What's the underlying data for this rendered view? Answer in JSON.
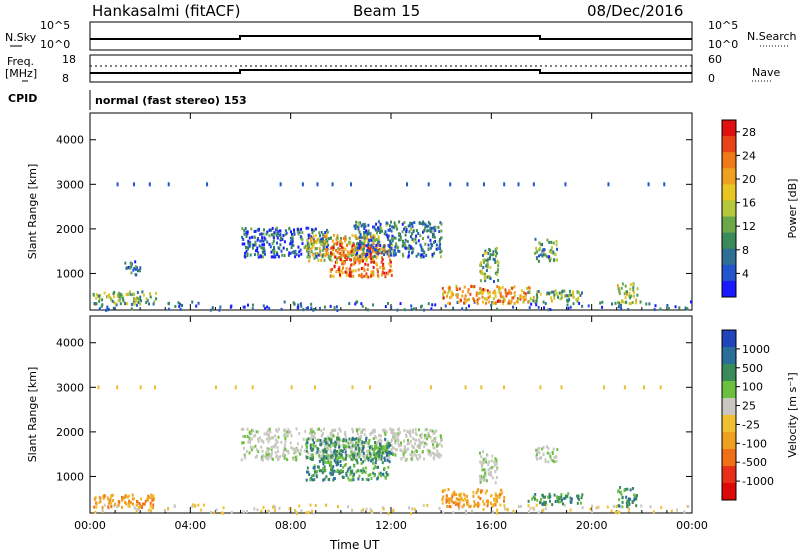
{
  "header": {
    "station": "Hankasalmi (fitACF)",
    "beam": "Beam 15",
    "date": "08/Dec/2016"
  },
  "status_panels": {
    "nsky_label": "N.Sky",
    "nsky_top": "10^5",
    "nsky_bottom": "10^0",
    "nsearch_label": "N.Search",
    "nsearch_top": "10^5",
    "nsearch_bottom": "10^0",
    "freq_label": "Freq.",
    "freq_unit": "[MHz]",
    "freq_top": "18",
    "freq_bottom": "8",
    "nave_label": "Nave",
    "nave_top": "60",
    "nave_bottom": "0",
    "cpid_label": "CPID",
    "cpid_value": "normal (fast stereo) 153"
  },
  "chart_data": [
    {
      "type": "heatmap",
      "panel": "power",
      "xlabel": "",
      "ylabel": "Slant Range [km]",
      "x_ticks": [
        "00:00",
        "04:00",
        "08:00",
        "12:00",
        "16:00",
        "20:00",
        "00:00"
      ],
      "y_ticks": [
        "1000",
        "2000",
        "3000",
        "4000"
      ],
      "xlim_hours": [
        0,
        24
      ],
      "ylim_km": [
        180,
        4600
      ],
      "colorbar": {
        "label": "Power [dB]",
        "ticks": [
          "4",
          "8",
          "12",
          "16",
          "20",
          "24",
          "28"
        ],
        "range": [
          0,
          30
        ],
        "colors": [
          "#1a1aff",
          "#2255cc",
          "#2f6e95",
          "#3a8a5a",
          "#6aa84a",
          "#b3c83a",
          "#e8c520",
          "#f0a020",
          "#f07a18",
          "#e84418",
          "#e01010"
        ]
      },
      "regions": [
        {
          "t0": 0.1,
          "t1": 2.6,
          "r0": 330,
          "r1": 620,
          "level": 0.4
        },
        {
          "t0": 1.3,
          "t1": 2.0,
          "r0": 1000,
          "r1": 1300,
          "level": 0.25
        },
        {
          "t0": 6.0,
          "t1": 9.5,
          "r0": 1400,
          "r1": 2050,
          "level": 0.2
        },
        {
          "t0": 8.6,
          "t1": 11.5,
          "r0": 1300,
          "r1": 1900,
          "level": 0.55
        },
        {
          "t0": 9.5,
          "t1": 12.0,
          "r0": 950,
          "r1": 1700,
          "level": 0.8
        },
        {
          "t0": 10.5,
          "t1": 14.0,
          "r0": 1400,
          "r1": 2200,
          "level": 0.25
        },
        {
          "t0": 14.0,
          "t1": 17.5,
          "r0": 350,
          "r1": 750,
          "level": 0.7
        },
        {
          "t0": 15.5,
          "t1": 16.3,
          "r0": 850,
          "r1": 1600,
          "level": 0.4
        },
        {
          "t0": 17.7,
          "t1": 18.6,
          "r0": 1300,
          "r1": 1800,
          "level": 0.3
        },
        {
          "t0": 17.4,
          "t1": 19.6,
          "r0": 400,
          "r1": 650,
          "level": 0.45
        },
        {
          "t0": 21.0,
          "t1": 21.8,
          "r0": 350,
          "r1": 800,
          "level": 0.5
        }
      ]
    },
    {
      "type": "heatmap",
      "panel": "velocity",
      "xlabel": "Time UT",
      "ylabel": "Slant Range [km]",
      "x_ticks": [
        "00:00",
        "04:00",
        "08:00",
        "12:00",
        "16:00",
        "20:00",
        "00:00"
      ],
      "y_ticks": [
        "1000",
        "2000",
        "3000",
        "4000"
      ],
      "xlim_hours": [
        0,
        24
      ],
      "ylim_km": [
        180,
        4600
      ],
      "colorbar": {
        "label": "Velocity [m s⁻¹]",
        "ticks": [
          "1000",
          "500",
          "100",
          "25",
          "-25",
          "-100",
          "-500",
          "-1000"
        ],
        "colors": [
          "#2244bb",
          "#2b6e9a",
          "#3a8a5a",
          "#6cc040",
          "#c8c8c0",
          "#f0c030",
          "#f0a020",
          "#f07018",
          "#e83018",
          "#dd0808"
        ]
      },
      "regions": [
        {
          "t0": 0.1,
          "t1": 2.6,
          "r0": 330,
          "r1": 620,
          "vel": "neg"
        },
        {
          "t0": 6.0,
          "t1": 14.0,
          "r0": 1400,
          "r1": 2100,
          "vel": "zero"
        },
        {
          "t0": 8.6,
          "t1": 12.0,
          "r0": 950,
          "r1": 1900,
          "vel": "pos"
        },
        {
          "t0": 14.0,
          "t1": 16.5,
          "r0": 350,
          "r1": 750,
          "vel": "neg"
        },
        {
          "t0": 15.5,
          "t1": 16.2,
          "r0": 850,
          "r1": 1600,
          "vel": "zero"
        },
        {
          "t0": 17.4,
          "t1": 19.6,
          "r0": 400,
          "r1": 650,
          "vel": "pos"
        },
        {
          "t0": 17.7,
          "t1": 18.6,
          "r0": 1350,
          "r1": 1700,
          "vel": "zero"
        },
        {
          "t0": 21.0,
          "t1": 21.8,
          "r0": 350,
          "r1": 800,
          "vel": "pos"
        }
      ]
    }
  ]
}
